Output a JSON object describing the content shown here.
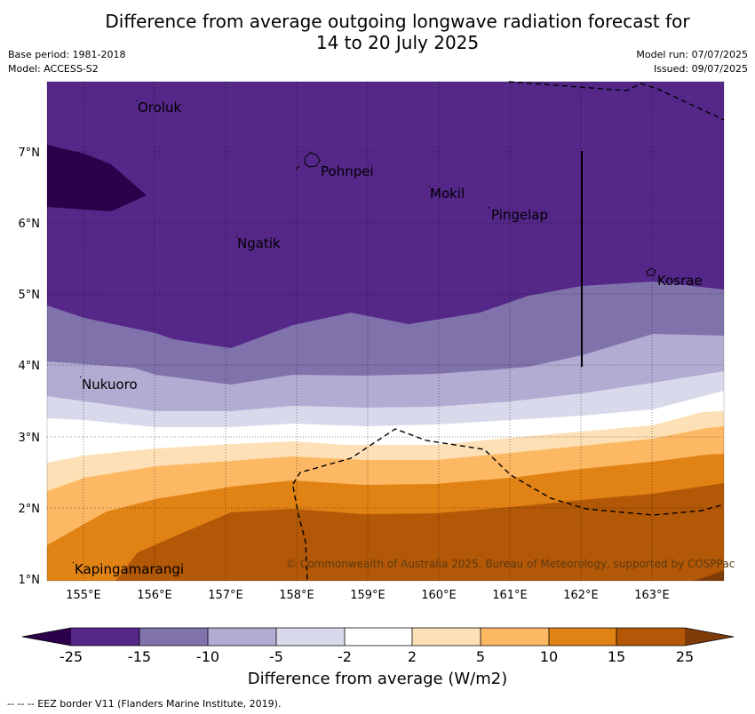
{
  "title_line1": "Difference from average outgoing longwave radiation forecast for",
  "title_line2": "14 to 20 July 2025",
  "base_period": "Base period: 1981-2018",
  "model": "Model: ACCESS-S2",
  "model_run": "Model run: 07/07/2025",
  "issued": "Issued: 09/07/2025",
  "copyright": "© Commonwealth of Australia 2025, Bureau of Meteorology, supported by COSPPac",
  "colorbar_label": "Difference from average (W/m2)",
  "eez_note": "--  --  -- EEZ border V11 (Flanders Marine Institute, 2019).",
  "lon_ticks": [
    "155°E",
    "156°E",
    "157°E",
    "158°E",
    "159°E",
    "160°E",
    "161°E",
    "162°E",
    "163°E"
  ],
  "lat_ticks": [
    "7°N",
    "6°N",
    "5°N",
    "4°N",
    "3°N",
    "2°N",
    "1°N"
  ],
  "colorbar_ticks": [
    "-25",
    "-15",
    "-10",
    "-5",
    "-2",
    "2",
    "5",
    "10",
    "15",
    "25"
  ],
  "colors": {
    "lt_-25": "#2d004b",
    "-25_-15": "#542788",
    "-15_-10": "#8073ac",
    "-10_-5": "#b2abd2",
    "-5_-2": "#d8daeb",
    "-2_2": "#ffffff",
    "2_5": "#fee0b6",
    "5_10": "#fdb863",
    "10_15": "#e08214",
    "15_25": "#b35806",
    "gt_25": "#7f3b08"
  },
  "places": {
    "oroluk": "Oroluk",
    "pohnpei": "Pohnpei",
    "mokil": "Mokil",
    "pingelap": "Pingelap",
    "ngatik": "Ngatik",
    "kosrae": "Kosrae",
    "nukuoro": "Nukuoro",
    "kapingamarangi": "Kapingamarangi"
  }
}
